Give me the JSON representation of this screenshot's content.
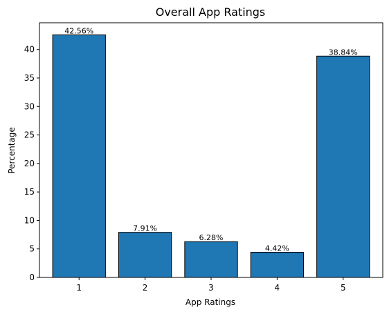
{
  "chart_data": {
    "type": "bar",
    "title": "Overall App Ratings",
    "xlabel": "App Ratings",
    "ylabel": "Percentage",
    "categories": [
      "1",
      "2",
      "3",
      "4",
      "5"
    ],
    "values": [
      42.56,
      7.91,
      6.28,
      4.42,
      38.84
    ],
    "data_labels": [
      "42.56%",
      "7.91%",
      "6.28%",
      "4.42%",
      "38.84%"
    ],
    "ylim": [
      0,
      44.688
    ],
    "yticks": [
      0,
      5,
      10,
      15,
      20,
      25,
      30,
      35,
      40
    ],
    "ytick_labels": [
      "0",
      "5",
      "10",
      "15",
      "20",
      "25",
      "30",
      "35",
      "40"
    ],
    "grid": false,
    "colors": {
      "bar_fill": "#1f77b4",
      "bar_edge": "#000000"
    }
  }
}
